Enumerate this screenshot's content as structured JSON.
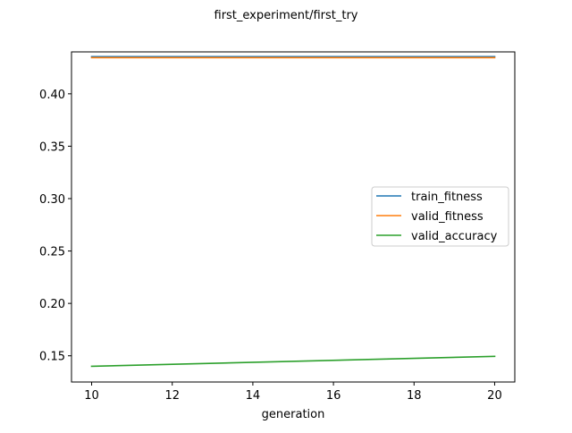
{
  "chart_data": {
    "type": "line",
    "title": "first_experiment/first_try",
    "xlabel": "generation",
    "ylabel": "",
    "x": [
      10,
      20
    ],
    "xlim": [
      9.5,
      20.5
    ],
    "ylim": [
      0.125,
      0.44
    ],
    "xticks": [
      "10",
      "12",
      "14",
      "16",
      "18",
      "20"
    ],
    "yticks": [
      "0.15",
      "0.20",
      "0.25",
      "0.30",
      "0.35",
      "0.40"
    ],
    "grid": false,
    "legend_position": "center-right",
    "series": [
      {
        "name": "train_fitness",
        "color": "#1f77b4",
        "values": [
          0.4355,
          0.4355
        ]
      },
      {
        "name": "valid_fitness",
        "color": "#ff7f0e",
        "values": [
          0.4345,
          0.4345
        ]
      },
      {
        "name": "valid_accuracy",
        "color": "#2ca02c",
        "values": [
          0.14,
          0.1495
        ]
      }
    ]
  }
}
